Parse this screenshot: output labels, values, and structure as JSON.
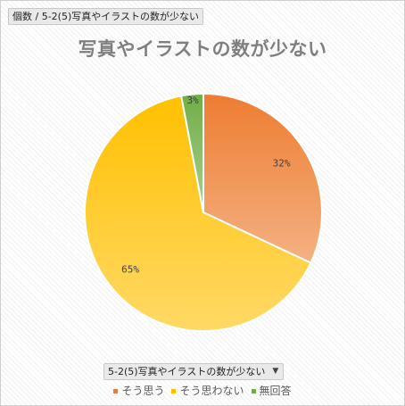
{
  "field_header": "個数 / 5-2(5)写真やイラストの数が少ない",
  "filter_label": "5-2(5)写真やイラストの数が少ない",
  "colors": {
    "accent_orange": "#ED7D31",
    "accent_yellow": "#FFC000",
    "accent_green": "#70AD47"
  },
  "chart_data": {
    "type": "pie",
    "title": "写真やイラストの数が少ない",
    "categories": [
      "そう思う",
      "そう思わない",
      "無回答"
    ],
    "values": [
      32,
      65,
      3
    ],
    "labels": [
      "32%",
      "65%",
      "3%"
    ],
    "colors": [
      "#ED7D31",
      "#FFC000",
      "#70AD47"
    ],
    "legend": "bottom"
  }
}
